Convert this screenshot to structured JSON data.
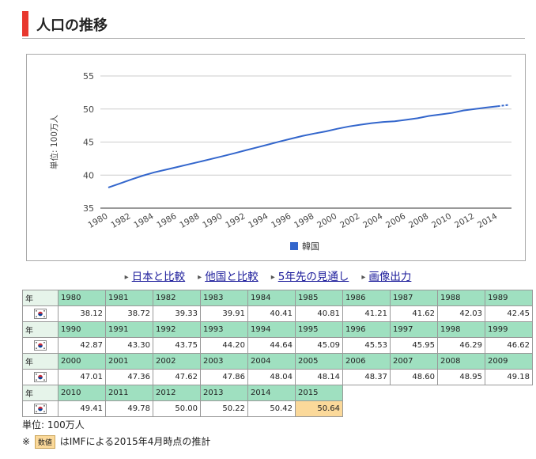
{
  "header": {
    "title": "人口の推移"
  },
  "chart_data": {
    "type": "line",
    "ylabel": "単位: 100万人",
    "ylim": [
      35,
      55
    ],
    "yticks": [
      35,
      40,
      45,
      50,
      55
    ],
    "xtick_labels": [
      "1980",
      "1982",
      "1984",
      "1986",
      "1988",
      "1990",
      "1992",
      "1994",
      "1996",
      "1998",
      "2000",
      "2002",
      "2004",
      "2006",
      "2008",
      "2010",
      "2012",
      "2014"
    ],
    "grid": true,
    "legend_position": "bottom",
    "series": [
      {
        "name": "韓国",
        "color": "#3366cc",
        "x": [
          1980,
          1981,
          1982,
          1983,
          1984,
          1985,
          1986,
          1987,
          1988,
          1989,
          1990,
          1991,
          1992,
          1993,
          1994,
          1995,
          1996,
          1997,
          1998,
          1999,
          2000,
          2001,
          2002,
          2003,
          2004,
          2005,
          2006,
          2007,
          2008,
          2009,
          2010,
          2011,
          2012,
          2013,
          2014,
          2015
        ],
        "values": [
          38.12,
          38.72,
          39.33,
          39.91,
          40.41,
          40.81,
          41.21,
          41.62,
          42.03,
          42.45,
          42.87,
          43.3,
          43.75,
          44.2,
          44.64,
          45.09,
          45.53,
          45.95,
          46.29,
          46.62,
          47.01,
          47.36,
          47.62,
          47.86,
          48.04,
          48.14,
          48.37,
          48.6,
          48.95,
          49.18,
          49.41,
          49.78,
          50.0,
          50.22,
          50.42,
          50.64
        ],
        "estimated_from": 2015
      }
    ]
  },
  "links": [
    {
      "label": "日本と比較"
    },
    {
      "label": "他国と比較"
    },
    {
      "label": "5年先の見通し"
    },
    {
      "label": "画像出力"
    }
  ],
  "table": {
    "row_label": "年",
    "rows": [
      {
        "years": [
          "1980",
          "1981",
          "1982",
          "1983",
          "1984",
          "1985",
          "1986",
          "1987",
          "1988",
          "1989"
        ],
        "values": [
          "38.12",
          "38.72",
          "39.33",
          "39.91",
          "40.41",
          "40.81",
          "41.21",
          "41.62",
          "42.03",
          "42.45"
        ]
      },
      {
        "years": [
          "1990",
          "1991",
          "1992",
          "1993",
          "1994",
          "1995",
          "1996",
          "1997",
          "1998",
          "1999"
        ],
        "values": [
          "42.87",
          "43.30",
          "43.75",
          "44.20",
          "44.64",
          "45.09",
          "45.53",
          "45.95",
          "46.29",
          "46.62"
        ]
      },
      {
        "years": [
          "2000",
          "2001",
          "2002",
          "2003",
          "2004",
          "2005",
          "2006",
          "2007",
          "2008",
          "2009"
        ],
        "values": [
          "47.01",
          "47.36",
          "47.62",
          "47.86",
          "48.04",
          "48.14",
          "48.37",
          "48.60",
          "48.95",
          "49.18"
        ]
      },
      {
        "years": [
          "2010",
          "2011",
          "2012",
          "2013",
          "2014",
          "2015"
        ],
        "values": [
          "49.41",
          "49.78",
          "50.00",
          "50.22",
          "50.42",
          "50.64"
        ]
      }
    ],
    "estimated_years": [
      "2015"
    ]
  },
  "footer": {
    "unit": "単位: 100万人",
    "note_prefix": "※",
    "note_badge": "数値",
    "note_text": "はIMFによる2015年4月時点の推計"
  }
}
